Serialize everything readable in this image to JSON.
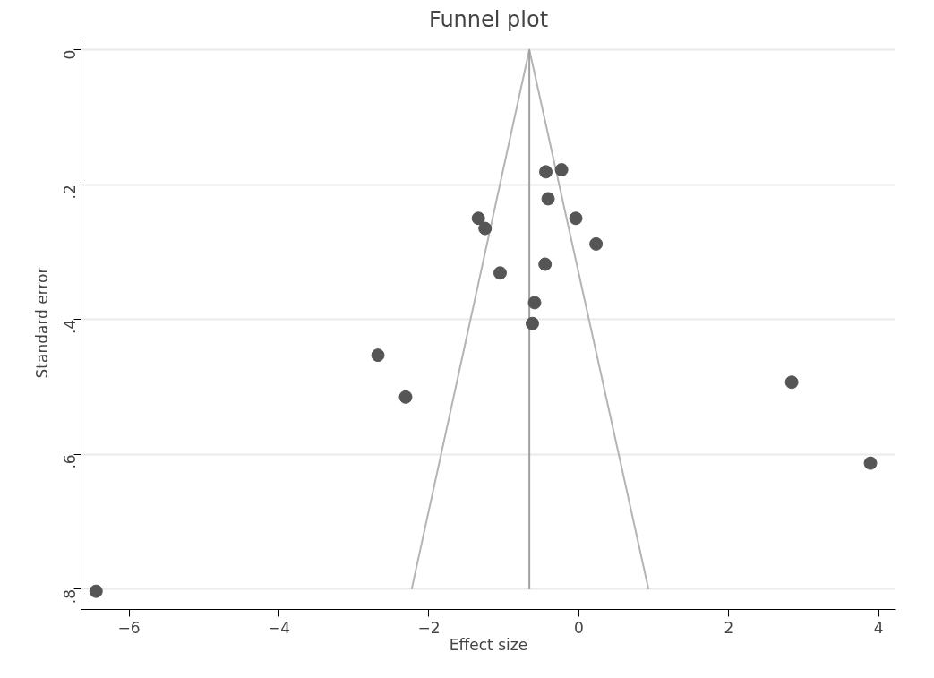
{
  "chart_data": {
    "type": "scatter",
    "title": "Funnel plot",
    "xlabel": "Effect size",
    "ylabel": "Standard error",
    "xlim": [
      -6.64,
      4.23
    ],
    "ylim": [
      0.83,
      -0.02
    ],
    "xticks": [
      -6,
      -4,
      -2,
      0,
      2,
      4
    ],
    "yticks": [
      0,
      {
        "value": 0.2,
        "label": ".2"
      },
      {
        "value": 0.4,
        "label": ".4"
      },
      {
        "value": 0.6,
        "label": ".6"
      },
      {
        "value": 0.8,
        "label": ".8"
      }
    ],
    "grid": "y",
    "marker": "circle",
    "series": [
      {
        "type": "line",
        "color": "#b4b4b4",
        "marker": "none",
        "line_style": "solid",
        "x": [
          -2.23,
          -0.66,
          0.93
        ],
        "values": [
          0.8,
          0,
          0.8
        ]
      },
      {
        "type": "line",
        "color": "#a0a0a0",
        "marker": "none",
        "line_style": "solid",
        "x": [
          -0.66,
          -0.66
        ],
        "values": [
          0,
          0.8
        ]
      },
      {
        "color": "#555555",
        "x": [
          -6.44,
          -2.68,
          -2.31,
          -1.34,
          -1.25,
          -1.05,
          -0.62,
          -0.59,
          -0.45,
          -0.44,
          -0.41,
          -0.23,
          -0.04,
          0.23,
          2.84,
          3.89
        ],
        "values": [
          0.803,
          0.453,
          0.515,
          0.25,
          0.265,
          0.331,
          0.406,
          0.375,
          0.318,
          0.181,
          0.221,
          0.178,
          0.25,
          0.288,
          0.493,
          0.613
        ]
      }
    ]
  }
}
